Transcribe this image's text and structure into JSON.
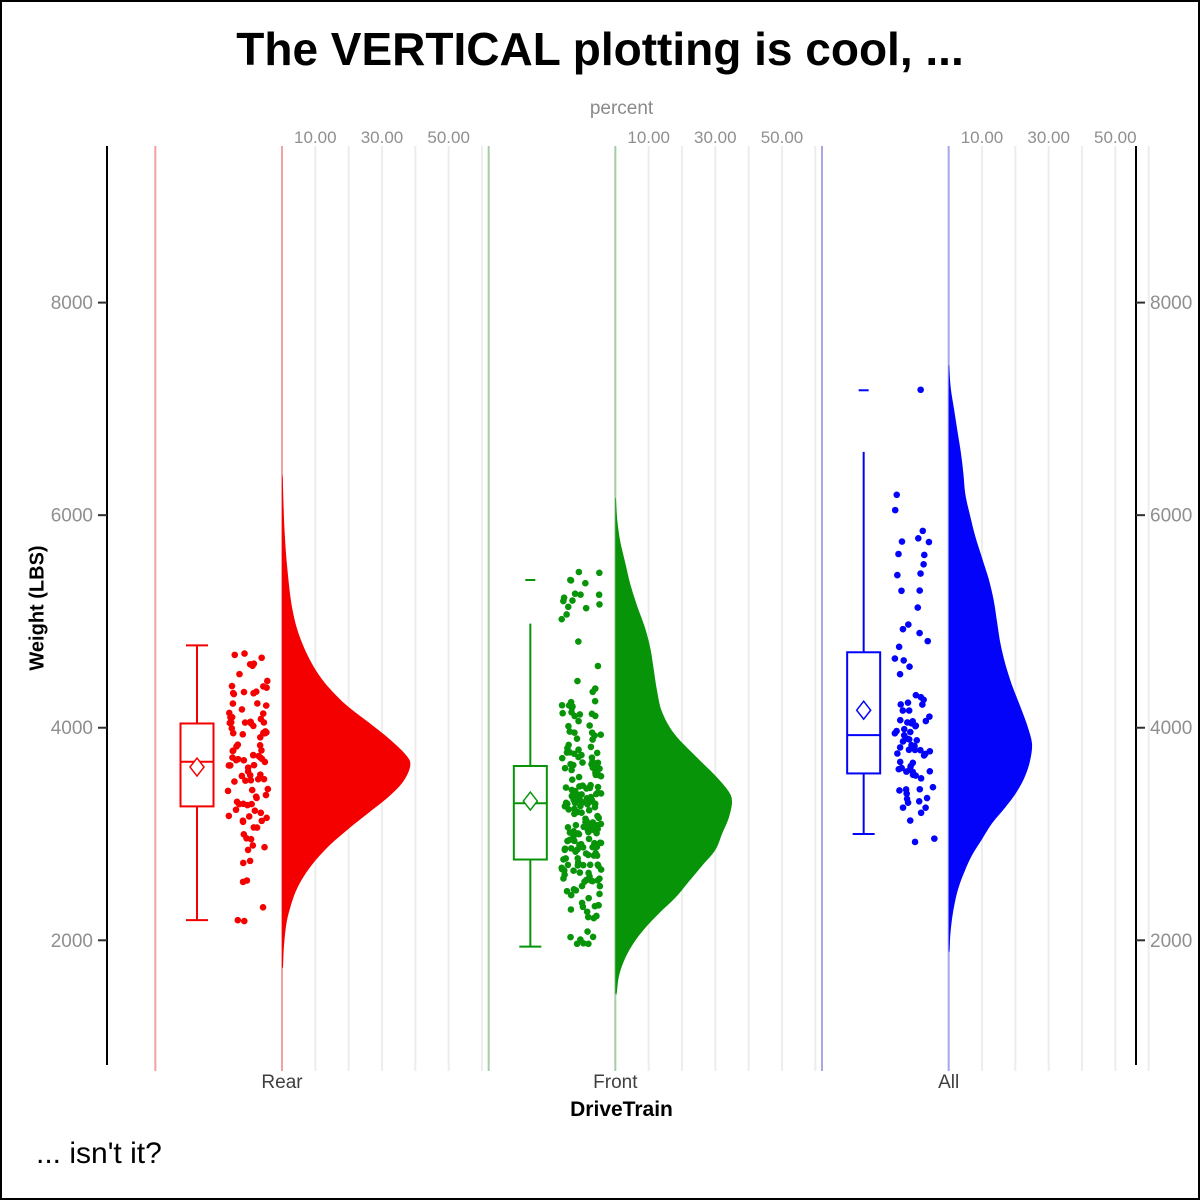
{
  "figure": {
    "title": "The VERTICAL plotting is cool, ...",
    "footnote": "... isn't it?",
    "background": "#ffffff",
    "border_color": "#000000"
  },
  "chart_data": {
    "type": "raincloud (half-violin + box plot + jittered points), vertical orientation",
    "title": "The VERTICAL plotting is cool, ...",
    "x_axis": {
      "label": "DriveTrain",
      "categories": [
        "Rear",
        "Front",
        "All"
      ],
      "label_color": "#3f3f3f"
    },
    "y_axis": {
      "label": "Weight (LBS)",
      "ticks": [
        2000,
        4000,
        6000,
        8000
      ],
      "range": [
        800,
        9400
      ],
      "tick_label_color": "#8f8f8f",
      "axis_color": "#000000",
      "mirrored_right": true
    },
    "top_axis": {
      "label": "percent",
      "tick_labels": [
        "10.00",
        "30.00",
        "50.00"
      ],
      "tick_values": [
        10,
        30,
        50
      ],
      "gridline_values": [
        10,
        20,
        30,
        40,
        50,
        60
      ],
      "gridline_color": "#ededed",
      "label_color": "#8f8f8f"
    },
    "legend": "none",
    "groups": [
      {
        "name": "Rear",
        "color": "#f40000",
        "light_color": "#f2a2a2",
        "box": {
          "q1": 3260,
          "median": 3680,
          "q3": 4040,
          "mean": 3630,
          "whisker_low": 2190,
          "whisker_high": 4775,
          "max_cap": null
        },
        "violin_profile_weight_vs_percent": [
          [
            6350,
            0.2
          ],
          [
            5900,
            0.7
          ],
          [
            5500,
            1.6
          ],
          [
            5100,
            3.2
          ],
          [
            4800,
            6
          ],
          [
            4500,
            11
          ],
          [
            4250,
            18
          ],
          [
            4050,
            26
          ],
          [
            3900,
            32
          ],
          [
            3750,
            37
          ],
          [
            3650,
            38.5
          ],
          [
            3500,
            36.5
          ],
          [
            3350,
            32
          ],
          [
            3200,
            26
          ],
          [
            3050,
            20
          ],
          [
            2900,
            14.5
          ],
          [
            2750,
            10
          ],
          [
            2600,
            6.5
          ],
          [
            2450,
            4
          ],
          [
            2300,
            2.4
          ],
          [
            2150,
            1.3
          ],
          [
            1950,
            0.6
          ],
          [
            1750,
            0.3
          ]
        ],
        "jitter": {
          "n": 104,
          "seed": 11,
          "min": 2170,
          "max": 4790,
          "clusters": [
            [
              3650,
              420,
              0.7
            ],
            [
              4330,
              210,
              0.14
            ],
            [
              2980,
              190,
              0.1
            ],
            [
              2380,
              130,
              0.06
            ]
          ]
        },
        "extra_points": []
      },
      {
        "name": "Front",
        "color": "#089408",
        "light_color": "#a6cea6",
        "box": {
          "q1": 2760,
          "median": 3290,
          "q3": 3640,
          "mean": 3310,
          "whisker_low": 1940,
          "whisker_high": 4980,
          "max_cap": 5390
        },
        "violin_profile_weight_vs_percent": [
          [
            6150,
            0.2
          ],
          [
            5950,
            0.6
          ],
          [
            5750,
            1.5
          ],
          [
            5550,
            3
          ],
          [
            5350,
            4.5
          ],
          [
            5150,
            6.5
          ],
          [
            4950,
            8.8
          ],
          [
            4750,
            10.5
          ],
          [
            4550,
            11.5
          ],
          [
            4350,
            12.5
          ],
          [
            4150,
            14
          ],
          [
            3950,
            17.5
          ],
          [
            3750,
            23.5
          ],
          [
            3550,
            30
          ],
          [
            3400,
            34
          ],
          [
            3300,
            35
          ],
          [
            3150,
            34
          ],
          [
            3000,
            32
          ],
          [
            2850,
            30
          ],
          [
            2700,
            26
          ],
          [
            2550,
            22
          ],
          [
            2400,
            18
          ],
          [
            2250,
            13
          ],
          [
            2100,
            8.5
          ],
          [
            1950,
            5
          ],
          [
            1800,
            2.5
          ],
          [
            1650,
            1
          ],
          [
            1500,
            0.4
          ]
        ],
        "jitter": {
          "n": 212,
          "seed": 23,
          "min": 1850,
          "max": 5480,
          "clusters": [
            [
              3280,
              400,
              0.6
            ],
            [
              2680,
              260,
              0.17
            ],
            [
              3950,
              230,
              0.09
            ],
            [
              2250,
              160,
              0.06
            ],
            [
              5320,
              240,
              0.065
            ],
            [
              1950,
              80,
              0.015
            ]
          ]
        },
        "extra_points": [
          [
            -45,
            5390
          ],
          [
            -30,
            5360
          ]
        ]
      },
      {
        "name": "All",
        "color": "#0303fa",
        "light_color": "#a6a6e8",
        "box": {
          "q1": 3570,
          "median": 3930,
          "q3": 4710,
          "mean": 4165,
          "whisker_low": 3000,
          "whisker_high": 6595,
          "max_cap": 7175
        },
        "violin_profile_weight_vs_percent": [
          [
            7400,
            0.15
          ],
          [
            7200,
            0.6
          ],
          [
            7000,
            1.6
          ],
          [
            6800,
            2.6
          ],
          [
            6600,
            3.6
          ],
          [
            6400,
            4.4
          ],
          [
            6200,
            5
          ],
          [
            6000,
            6.4
          ],
          [
            5800,
            8
          ],
          [
            5600,
            10
          ],
          [
            5400,
            12
          ],
          [
            5200,
            13.5
          ],
          [
            5000,
            14.5
          ],
          [
            4800,
            15.5
          ],
          [
            4600,
            17
          ],
          [
            4400,
            19
          ],
          [
            4200,
            21.5
          ],
          [
            4000,
            23.8
          ],
          [
            3850,
            25
          ],
          [
            3700,
            24.5
          ],
          [
            3550,
            23
          ],
          [
            3400,
            20.5
          ],
          [
            3250,
            17
          ],
          [
            3100,
            13
          ],
          [
            2950,
            10
          ],
          [
            2800,
            7
          ],
          [
            2650,
            4.8
          ],
          [
            2500,
            3
          ],
          [
            2350,
            1.8
          ],
          [
            2200,
            1
          ],
          [
            2050,
            0.5
          ],
          [
            1900,
            0.25
          ]
        ],
        "jitter": {
          "n": 86,
          "seed": 5,
          "min": 2910,
          "max": 6480,
          "clusters": [
            [
              3620,
              330,
              0.44
            ],
            [
              4180,
              280,
              0.24
            ],
            [
              4850,
              300,
              0.13
            ],
            [
              5520,
              330,
              0.1
            ],
            [
              6150,
              260,
              0.05
            ],
            [
              3120,
              140,
              0.04
            ]
          ]
        },
        "extra_points": [
          [
            -28,
            7180
          ]
        ]
      }
    ]
  }
}
